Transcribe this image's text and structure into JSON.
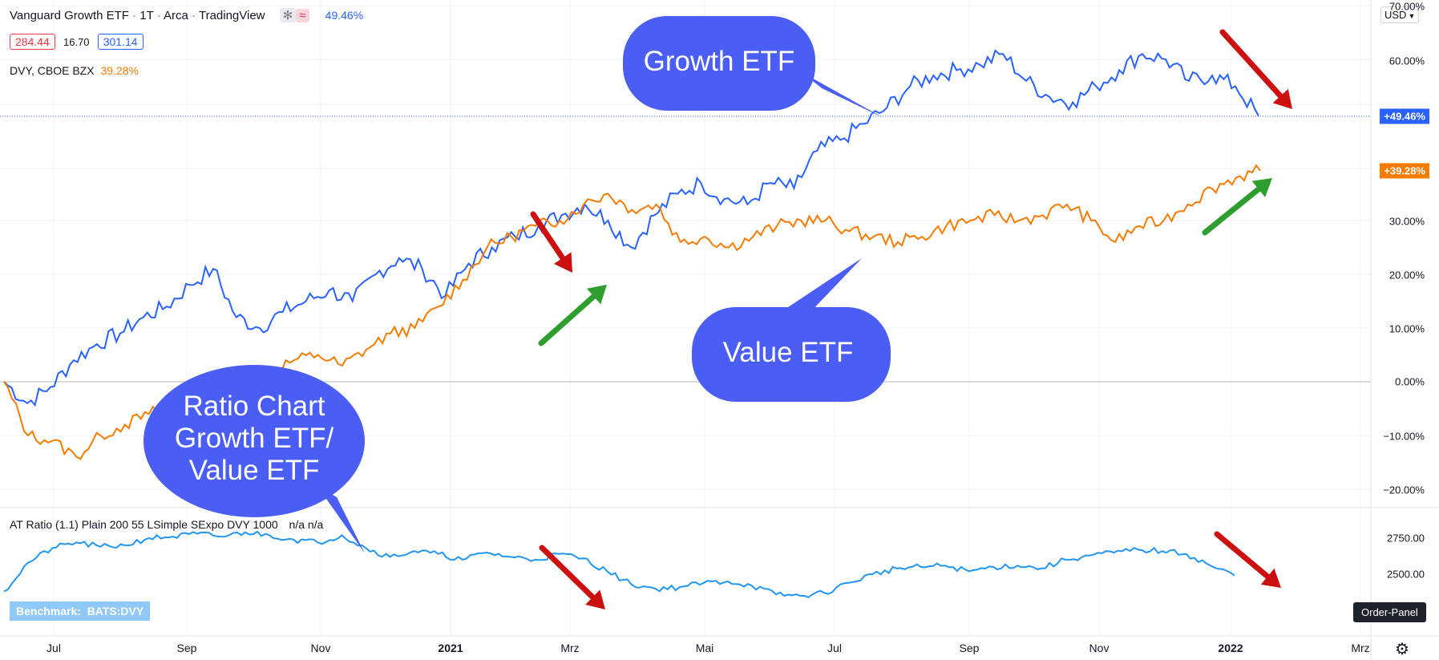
{
  "header": {
    "title": "Vanguard Growth ETF",
    "sep1": "·",
    "interval": "1T",
    "sep2": "·",
    "exchange": "Arca",
    "sep3": "·",
    "source": "TradingView",
    "main_change": "49.46%",
    "price_low": "284.44",
    "price_mid": "16.70",
    "price_high": "301.14",
    "compare_symbol": "DVY, CBOE BZX",
    "compare_change": "39.28%",
    "currency": "USD"
  },
  "indicator": {
    "label": "AT Ratio (1.1) Plain 200 55 LSimple SExpo DVY 1000",
    "values": "n/a  n/a",
    "benchmark": "Benchmark:  BATS:DVY"
  },
  "order_panel": "Order-Panel",
  "callouts": {
    "growth": "Growth ETF",
    "value": "Value ETF",
    "ratio_line1": "Ratio Chart",
    "ratio_line2": "Growth ETF/",
    "ratio_line3": "Value ETF"
  },
  "colors": {
    "growth": "#2962ff",
    "value": "#f57c00",
    "ratio": "#2196f3",
    "callout": "#4a5ef5",
    "red_arrow": "#cc1010",
    "green_arrow": "#2e9e2e"
  },
  "chart_data": [
    {
      "type": "line",
      "y_axis_labels": [
        "70.00%",
        "60.00%",
        "30.00%",
        "20.00%",
        "10.00%",
        "0.00%",
        "−10.00%",
        "−20.00%"
      ],
      "y_unit": "percent",
      "ylim": [
        -22,
        70
      ],
      "x_tick_labels": [
        "Jul",
        "Sep",
        "Nov",
        "2021",
        "Mrz",
        "Mai",
        "Jul",
        "Sep",
        "Nov",
        "2022",
        "Mrz"
      ],
      "last_value_badges": [
        "+49.46%",
        "+39.28%"
      ],
      "series": [
        {
          "name": "Vanguard Growth ETF",
          "color": "#2962ff",
          "values": [
            0,
            -4,
            -1,
            4,
            7,
            9,
            12,
            14,
            18,
            21,
            12,
            10,
            13,
            15,
            17,
            15,
            20,
            23,
            21,
            16,
            22,
            25,
            27,
            29,
            31,
            33,
            30,
            25,
            31,
            35,
            37,
            34,
            33,
            37,
            36,
            43,
            45,
            48,
            51,
            55,
            57,
            58,
            59,
            61,
            56,
            53,
            52,
            55,
            58,
            61,
            60,
            56,
            57,
            55,
            49.46
          ]
        },
        {
          "name": "DVY, CBOE BZX",
          "color": "#f57c00",
          "values": [
            0,
            -10,
            -11,
            -14,
            -10,
            -8,
            -6,
            -4,
            -3,
            -2,
            -1,
            2,
            4,
            5,
            3,
            6,
            9,
            10,
            14,
            19,
            25,
            27,
            29,
            30,
            33,
            35,
            32,
            33,
            26,
            27,
            25,
            27,
            29,
            30,
            30,
            28,
            27,
            26,
            27,
            29,
            30,
            31,
            30,
            31,
            33,
            30,
            26,
            29,
            30,
            33,
            36,
            38,
            39.28
          ]
        }
      ]
    },
    {
      "type": "line",
      "y_axis_labels": [
        "2750.00",
        "2500.00"
      ],
      "ylim": [
        2330,
        2840
      ],
      "series": [
        {
          "name": "AT Ratio",
          "color": "#2196f3",
          "values": [
            2380,
            2580,
            2680,
            2720,
            2690,
            2700,
            2750,
            2760,
            2780,
            2760,
            2790,
            2770,
            2740,
            2720,
            2770,
            2680,
            2620,
            2660,
            2640,
            2600,
            2650,
            2620,
            2600,
            2640,
            2610,
            2520,
            2430,
            2400,
            2410,
            2440,
            2450,
            2420,
            2360,
            2350,
            2370,
            2440,
            2500,
            2540,
            2550,
            2560,
            2520,
            2550,
            2560,
            2540,
            2600,
            2630,
            2650,
            2670,
            2660,
            2640,
            2560,
            2490
          ]
        }
      ]
    }
  ]
}
